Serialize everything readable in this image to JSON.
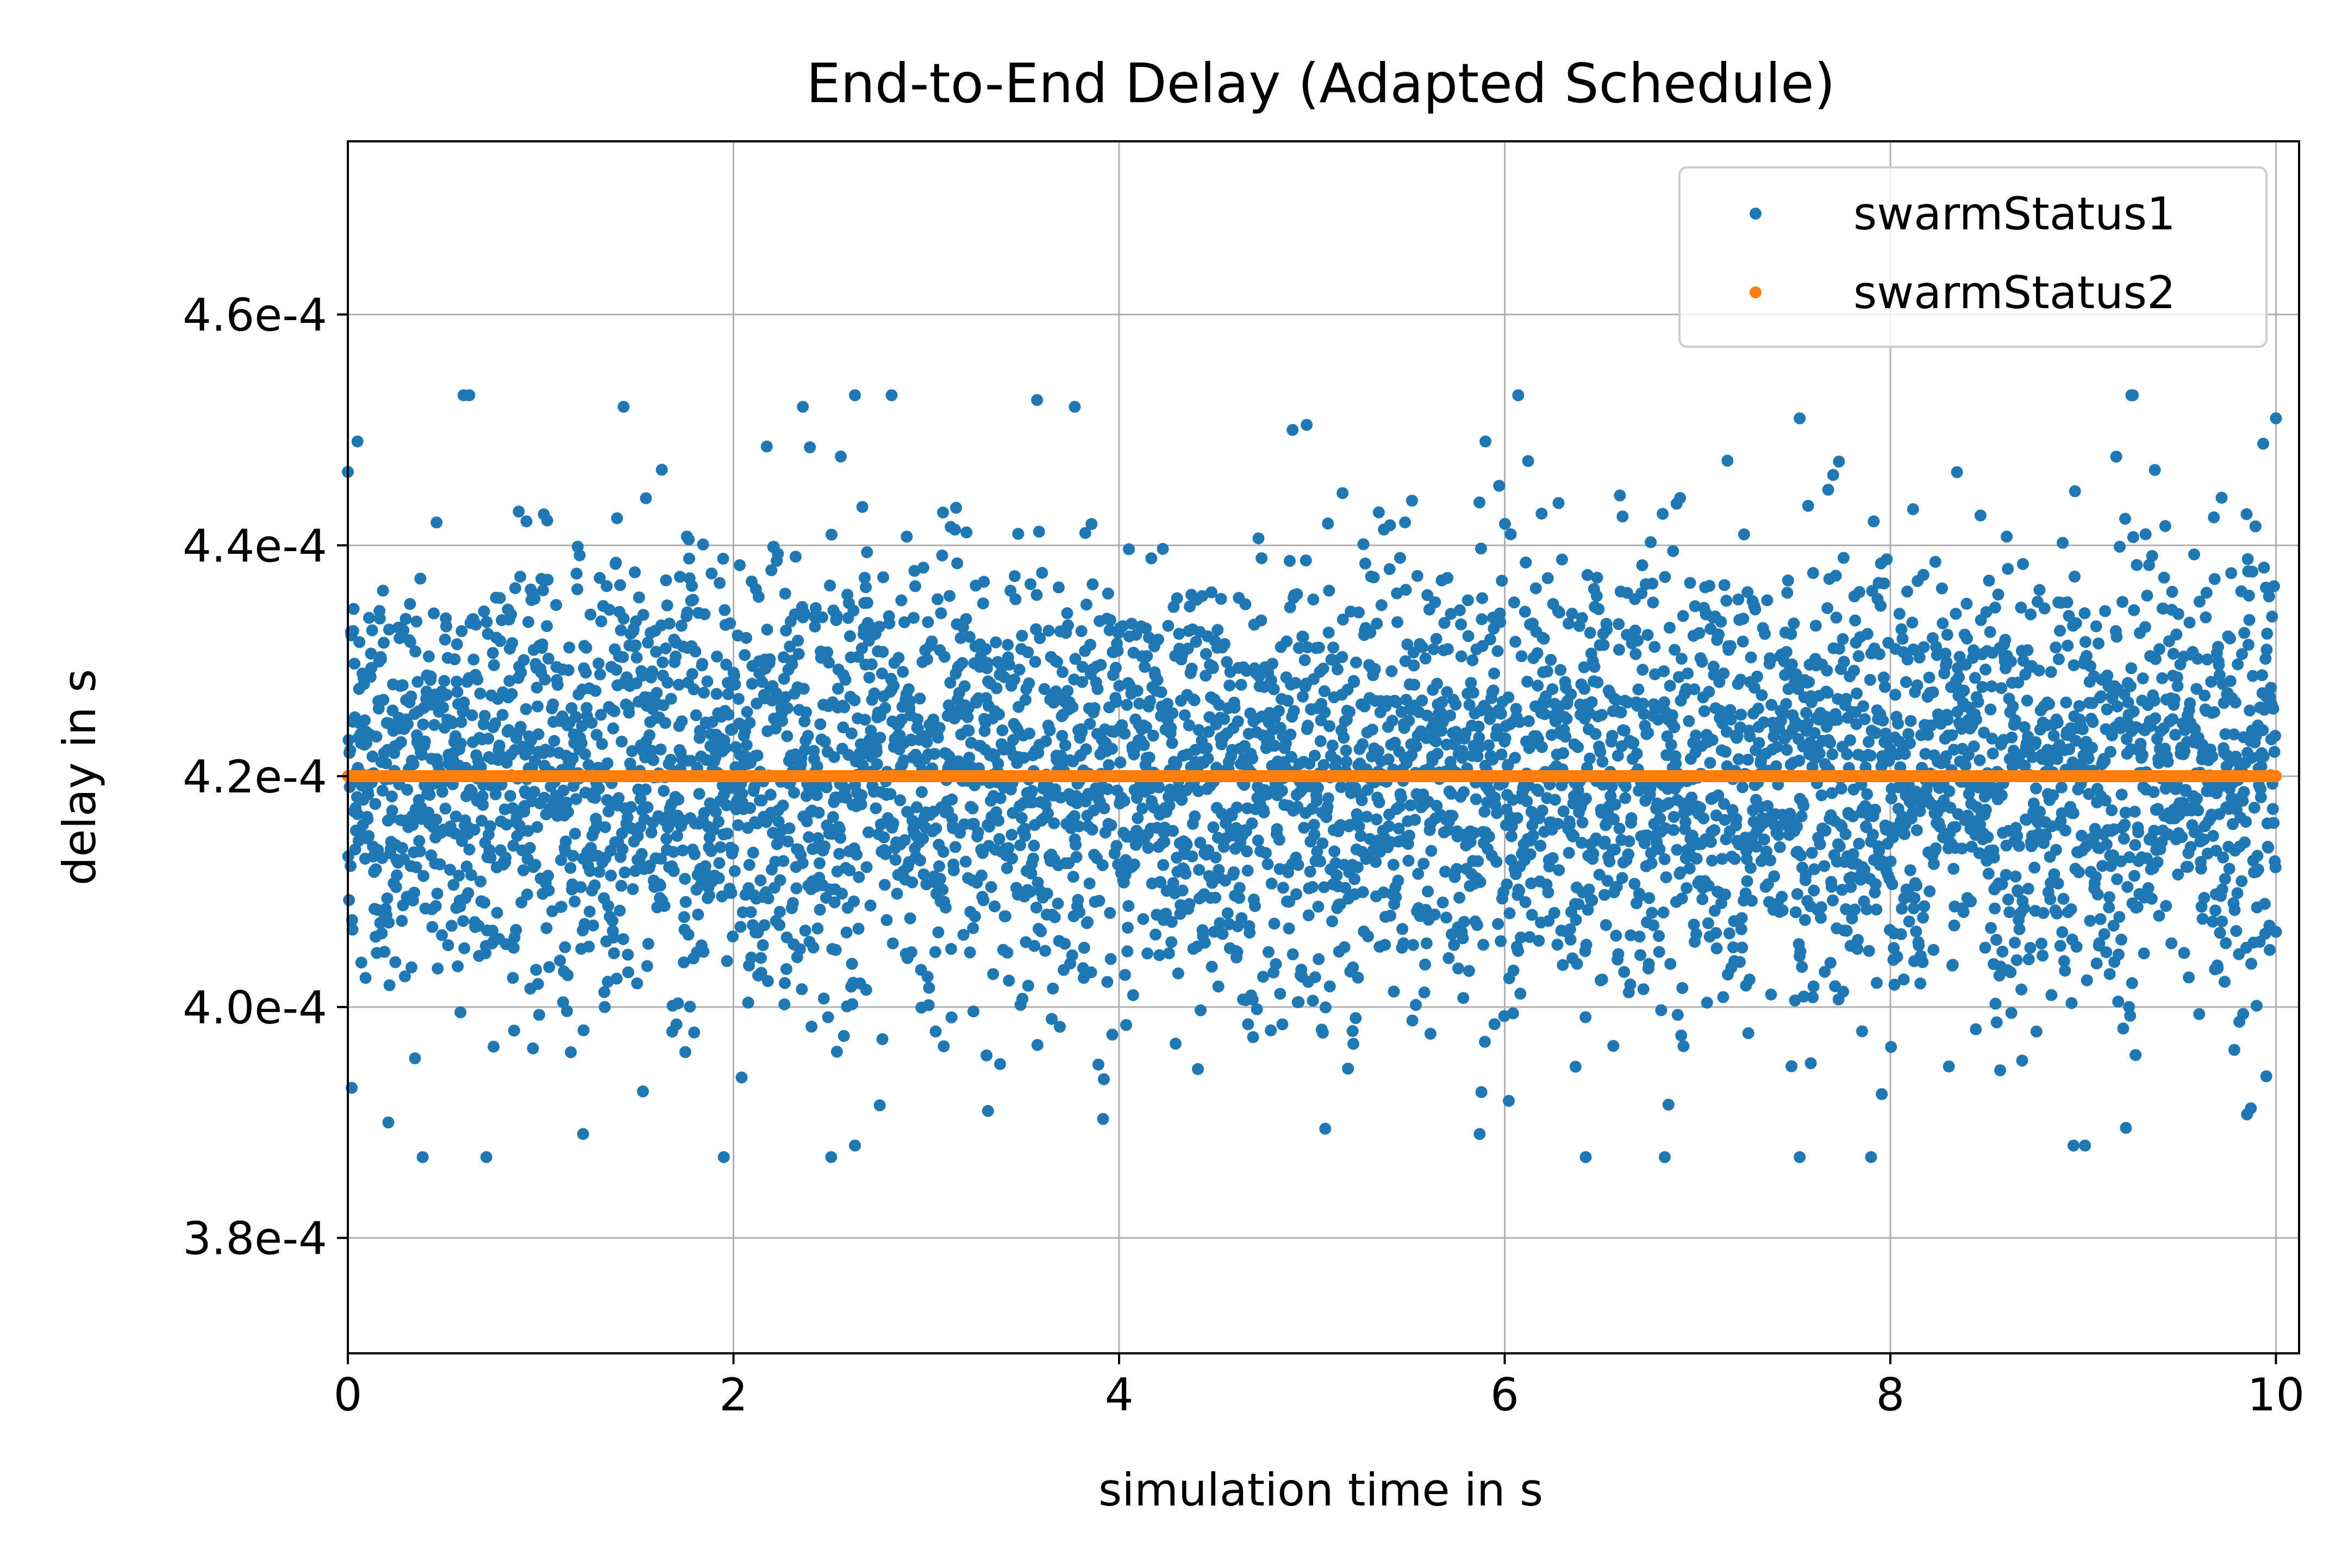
{
  "chart_data": {
    "type": "scatter",
    "title": "End-to-End Delay (Adapted Schedule)",
    "xlabel": "simulation time in s",
    "ylabel": "delay in s",
    "xlim": [
      0,
      10.12
    ],
    "ylim": [
      0.00037,
      0.000475
    ],
    "grid": true,
    "legend_position": "top-right",
    "x_ticks": [
      {
        "value": 0,
        "label": "0"
      },
      {
        "value": 2,
        "label": "2"
      },
      {
        "value": 4,
        "label": "4"
      },
      {
        "value": 6,
        "label": "6"
      },
      {
        "value": 8,
        "label": "8"
      },
      {
        "value": 10,
        "label": "10"
      }
    ],
    "y_ticks": [
      {
        "value": 0.00038,
        "label": "3.8e-4"
      },
      {
        "value": 0.0004,
        "label": "4.0e-4"
      },
      {
        "value": 0.00042,
        "label": "4.2e-4"
      },
      {
        "value": 0.00044,
        "label": "4.4e-4"
      },
      {
        "value": 0.00046,
        "label": "4.6e-4"
      }
    ],
    "series": [
      {
        "name": "swarmStatus1",
        "color": "#1f77b4",
        "x_range": [
          0,
          10
        ],
        "y_center": 0.00042,
        "y_spread_std": 9.5e-06,
        "y_min": 0.000387,
        "y_max": 0.000453,
        "point_count": 5000,
        "sample_points": [
          {
            "x": 0.6,
            "y": 0.000453
          },
          {
            "x": 0.63,
            "y": 0.000453
          },
          {
            "x": 1.43,
            "y": 0.000452
          },
          {
            "x": 2.36,
            "y": 0.000452
          },
          {
            "x": 2.63,
            "y": 0.000453
          },
          {
            "x": 2.82,
            "y": 0.000453
          },
          {
            "x": 3.77,
            "y": 0.000452
          },
          {
            "x": 6.07,
            "y": 0.000453
          },
          {
            "x": 7.53,
            "y": 0.000451
          },
          {
            "x": 9.25,
            "y": 0.000453
          },
          {
            "x": 10.0,
            "y": 0.000451
          },
          {
            "x": 0.05,
            "y": 0.000449
          },
          {
            "x": 4.9,
            "y": 0.00045
          },
          {
            "x": 5.9,
            "y": 0.000449
          },
          {
            "x": 0.21,
            "y": 0.00039
          },
          {
            "x": 1.22,
            "y": 0.000389
          },
          {
            "x": 1.95,
            "y": 0.000387
          },
          {
            "x": 2.63,
            "y": 0.000388
          },
          {
            "x": 5.87,
            "y": 0.000389
          },
          {
            "x": 6.42,
            "y": 0.000387
          },
          {
            "x": 6.83,
            "y": 0.000387
          },
          {
            "x": 7.53,
            "y": 0.000387
          },
          {
            "x": 7.9,
            "y": 0.000387
          },
          {
            "x": 8.95,
            "y": 0.000388
          },
          {
            "x": 9.01,
            "y": 0.000388
          },
          {
            "x": 0.02,
            "y": 0.000393
          },
          {
            "x": 3.32,
            "y": 0.000391
          },
          {
            "x": 9.95,
            "y": 0.000394
          }
        ]
      },
      {
        "name": "swarmStatus2",
        "color": "#ff7f0e",
        "x_range": [
          0,
          10
        ],
        "y_value": 0.00042,
        "point_count": 5000
      }
    ]
  }
}
